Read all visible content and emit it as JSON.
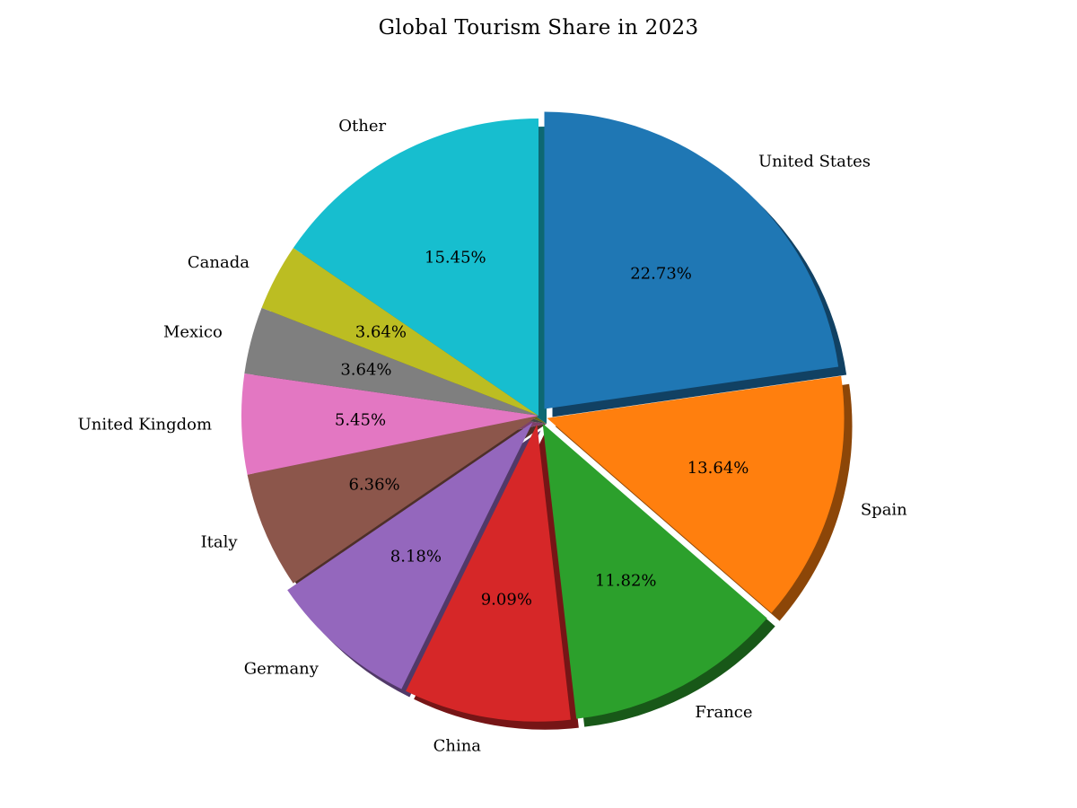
{
  "chart_data": {
    "type": "pie",
    "title": "Global Tourism Share in 2023",
    "categories": [
      "United States",
      "Spain",
      "France",
      "China",
      "Germany",
      "Italy",
      "United Kingdom",
      "Mexico",
      "Canada",
      "Other"
    ],
    "values": [
      22.73,
      13.64,
      11.82,
      9.09,
      8.18,
      6.36,
      5.45,
      3.64,
      3.64,
      15.45
    ],
    "percent_labels": [
      "22.73%",
      "13.64%",
      "11.82%",
      "9.09%",
      "8.18%",
      "6.36%",
      "5.45%",
      "3.64%",
      "3.64%",
      "15.45%"
    ],
    "colors": [
      "#1f77b4",
      "#ff7f0e",
      "#2ca02c",
      "#d62728",
      "#9467bd",
      "#8c564b",
      "#e377c2",
      "#7f7f7f",
      "#bcbd22",
      "#17becf"
    ],
    "start_angle_deg": 90,
    "direction": "clockwise",
    "shadow": true,
    "exploded_slices": [
      "United States",
      "Spain",
      "France",
      "China",
      "Germany"
    ],
    "legend": "none"
  }
}
